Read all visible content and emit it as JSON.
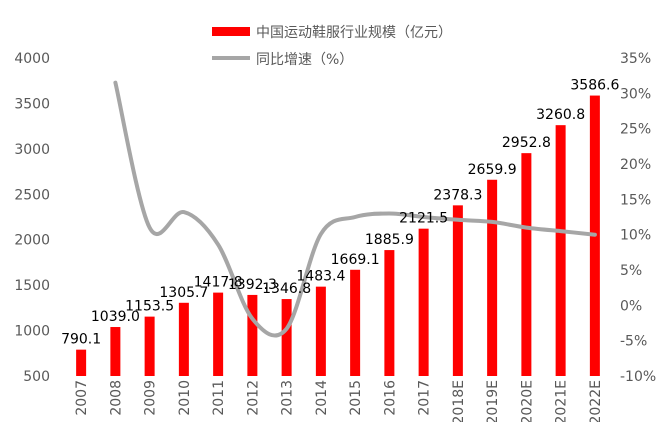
{
  "chart_data": {
    "type": "bar",
    "categories": [
      "2007",
      "2008",
      "2009",
      "2010",
      "2011",
      "2012",
      "2013",
      "2014",
      "2015",
      "2016",
      "2017",
      "2018E",
      "2019E",
      "2020E",
      "2021E",
      "2022E"
    ],
    "series": [
      {
        "name": "中国运动鞋服行业规模（亿元）",
        "type": "bar",
        "axis": "left",
        "color": "#ff0000",
        "values": [
          790.1,
          1039.0,
          1153.5,
          1305.7,
          1417.8,
          1392.3,
          1346.8,
          1483.4,
          1669.1,
          1885.9,
          2121.5,
          2378.3,
          2659.9,
          2952.8,
          3260.8,
          3586.6
        ],
        "labels": [
          "790.1",
          "1039.0",
          "1153.5",
          "1305.7",
          "1417.8",
          "1392.3",
          "1346.8",
          "1483.4",
          "1669.1",
          "1885.9",
          "2121.5",
          "2378.3",
          "2659.9",
          "2952.8",
          "3260.8",
          "3586.6"
        ]
      },
      {
        "name": "同比增速（%）",
        "type": "line",
        "axis": "right",
        "color": "#a6a6a6",
        "values": [
          null,
          31.5,
          11.0,
          13.2,
          8.6,
          -1.9,
          -3.3,
          10.1,
          12.5,
          13.0,
          12.5,
          12.1,
          11.8,
          11.0,
          10.5,
          10.0
        ]
      }
    ],
    "y_left": {
      "min": 500,
      "max": 4000,
      "ticks": [
        500,
        1000,
        1500,
        2000,
        2500,
        3000,
        3500,
        4000
      ],
      "tick_labels": [
        "500",
        "1000",
        "1500",
        "2000",
        "2500",
        "3000",
        "3500",
        "4000"
      ]
    },
    "y_right": {
      "min": -10,
      "max": 35,
      "ticks": [
        -10,
        -5,
        0,
        5,
        10,
        15,
        20,
        25,
        30,
        35
      ],
      "tick_labels": [
        "-10%",
        "-5%",
        "0%",
        "5%",
        "10%",
        "15%",
        "20%",
        "25%",
        "30%",
        "35%"
      ]
    },
    "legend_position": "top-center",
    "grid": false
  }
}
